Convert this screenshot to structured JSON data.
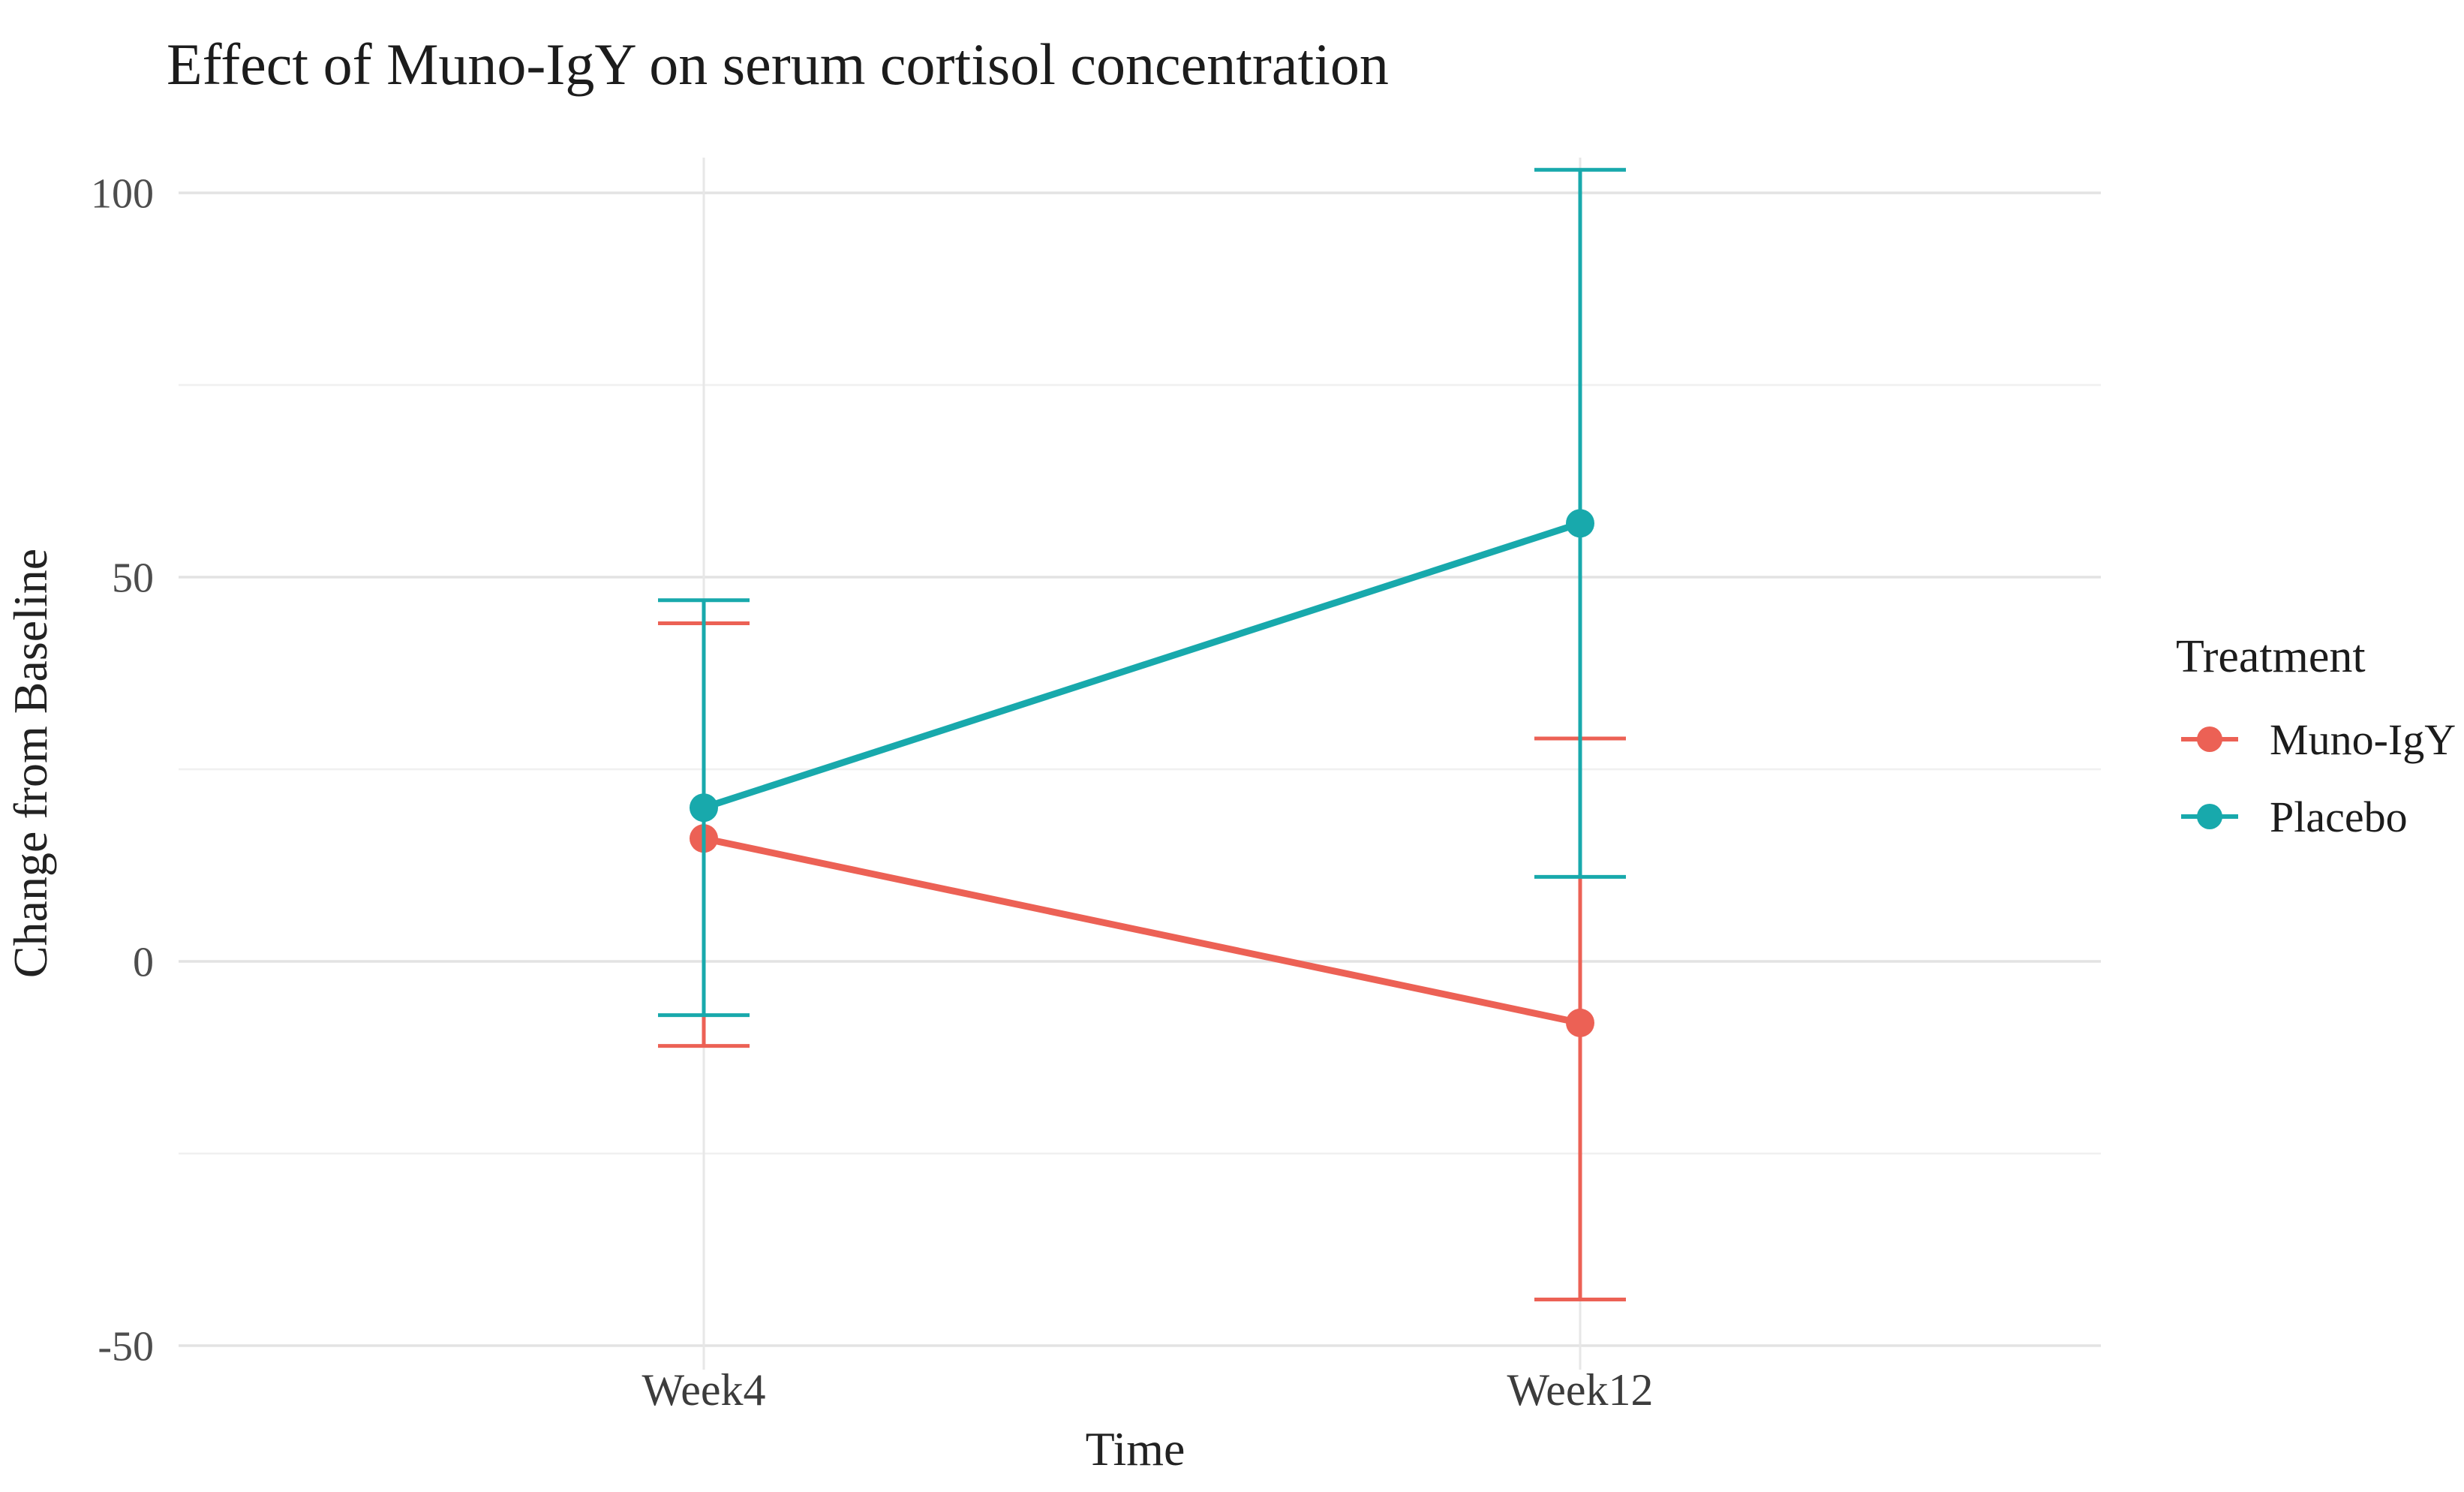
{
  "page": {
    "background": "#ffffff"
  },
  "chart_data": {
    "type": "line",
    "subtype": "point-range-with-error-bars",
    "title": "Effect of Muno-IgY on serum cortisol concentration",
    "xlabel": "Time",
    "ylabel": "Change from Baseline",
    "categories": [
      "Week4",
      "Week12"
    ],
    "series": [
      {
        "name": "Muno-IgY",
        "color": "#EC6155",
        "values": [
          16,
          -8
        ],
        "error_low": [
          -11,
          -44
        ],
        "error_high": [
          44,
          29
        ]
      },
      {
        "name": "Placebo",
        "color": "#18A9AC",
        "values": [
          20,
          57
        ],
        "error_low": [
          -7,
          11
        ],
        "error_high": [
          47,
          103
        ]
      }
    ],
    "y_axis": {
      "ticks": [
        -50,
        0,
        50,
        100
      ],
      "minor_ticks": [
        -25,
        25,
        75
      ],
      "range": [
        -53,
        105
      ]
    },
    "x_axis": {
      "type": "categorical"
    },
    "legend": {
      "title": "Treatment",
      "position": "right"
    },
    "grid": {
      "horizontal_major": true,
      "horizontal_minor": true,
      "vertical_at_categories": true,
      "major_color": "#E3E3E3",
      "minor_color": "#F0F0F0",
      "vertical_color": "#E7E7E7"
    },
    "marker": "filled-circle"
  }
}
